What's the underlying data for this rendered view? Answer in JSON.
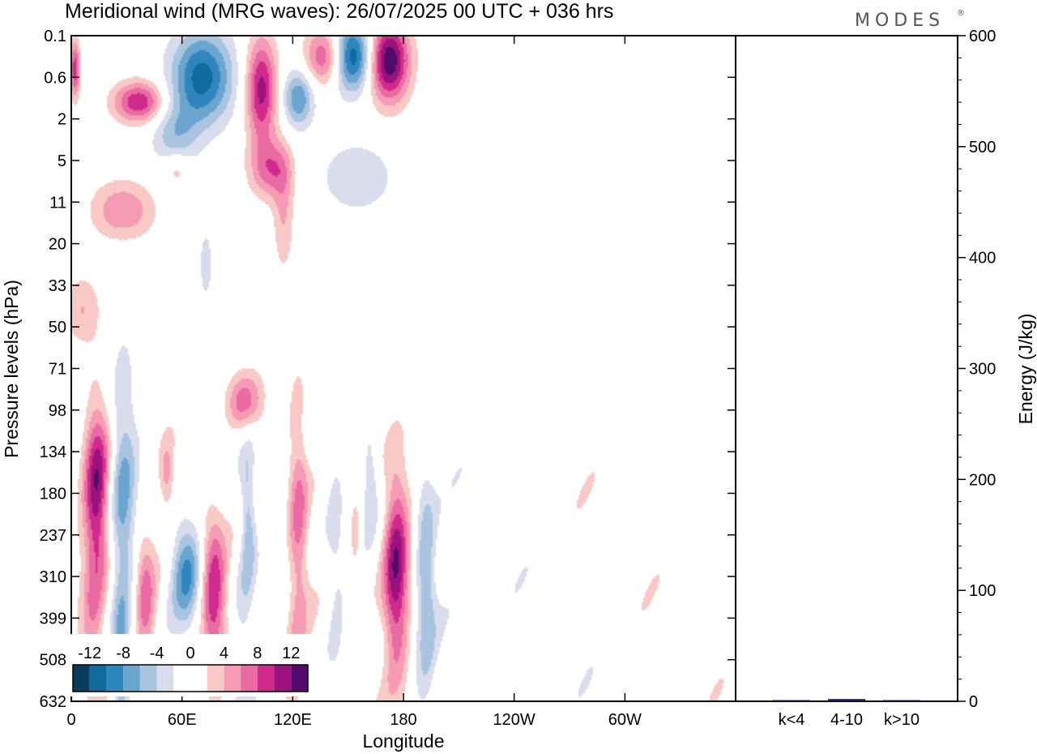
{
  "header": {
    "title": "Meridional wind (MRG waves):  26/07/2025  00 UTC  + 036 hrs",
    "brand": "MODES",
    "brand_mark": "®"
  },
  "colors": {
    "negative": [
      "#0b3c5d",
      "#0f6a9d",
      "#2f86bf",
      "#6aa5cf",
      "#a9c4df",
      "#d8dcec"
    ],
    "zero": "#ffffff",
    "positive": [
      "#f9c9c5",
      "#f59bb3",
      "#ea6aa2",
      "#cf2a8c",
      "#9c127c",
      "#4f0a6a"
    ],
    "bar": "#151a4f"
  },
  "chart_data": [
    {
      "type": "heatmap",
      "title": "Meridional wind (MRG waves)",
      "xlabel": "Longitude",
      "ylabel": "Pressure levels (hPa)",
      "x_ticks": [
        "0",
        "60E",
        "120E",
        "180",
        "120W",
        "60W"
      ],
      "y_ticks": [
        "0.1",
        "0.6",
        "2",
        "5",
        "11",
        "20",
        "33",
        "50",
        "71",
        "98",
        "134",
        "180",
        "237",
        "310",
        "399",
        "508",
        "632"
      ],
      "colorbar": {
        "levels": [
          -12,
          -8,
          -4,
          0,
          4,
          8,
          12
        ],
        "tick_labels": [
          "-12",
          "-8",
          "-4",
          "0",
          "4",
          "8",
          "12"
        ]
      },
      "features": [
        {
          "lon": 2,
          "level_index": 0.8,
          "value": 9,
          "sx": 2,
          "sy": 0.5
        },
        {
          "lon": 37,
          "level_index": 1.6,
          "value": 10,
          "sx": 10,
          "sy": 0.35
        },
        {
          "lon": 71,
          "level_index": 1.0,
          "value": -11,
          "sx": 12,
          "sy": 0.8
        },
        {
          "lon": 56,
          "level_index": 2.4,
          "value": -5,
          "sx": 9,
          "sy": 0.6
        },
        {
          "lon": 103,
          "level_index": 1.3,
          "value": 11,
          "sx": 6,
          "sy": 0.9
        },
        {
          "lon": 123,
          "level_index": 1.5,
          "value": -8,
          "sx": 6,
          "sy": 0.5
        },
        {
          "lon": 138,
          "level_index": 0.5,
          "value": 9,
          "sx": 8,
          "sy": 0.5
        },
        {
          "lon": 152,
          "level_index": 0.5,
          "value": -13,
          "sx": 8,
          "sy": 0.6
        },
        {
          "lon": 172,
          "level_index": 0.6,
          "value": 14,
          "sx": 8,
          "sy": 0.7
        },
        {
          "lon": 108,
          "level_index": 3.2,
          "value": 7,
          "sx": 8,
          "sy": 0.5
        },
        {
          "lon": 28,
          "level_index": 4.2,
          "value": 6,
          "sx": 12,
          "sy": 0.5
        },
        {
          "lon": 57,
          "level_index": 3.2,
          "value": 4,
          "sx": 5,
          "sy": 0.3
        },
        {
          "lon": 115,
          "level_index": 4.3,
          "value": 4,
          "sx": 4,
          "sy": 1.0
        },
        {
          "lon": 155,
          "level_index": 3.4,
          "value": -4,
          "sx": 14,
          "sy": 0.6
        },
        {
          "lon": 6,
          "level_index": 6.6,
          "value": 4,
          "sx": 7,
          "sy": 0.6
        },
        {
          "lon": 73,
          "level_index": 5.5,
          "value": -3,
          "sx": 3,
          "sy": 0.7
        },
        {
          "lon": 14,
          "level_index": 11.0,
          "value": 11,
          "sx": 5,
          "sy": 1.5
        },
        {
          "lon": 28,
          "level_index": 11.2,
          "value": -6,
          "sx": 5,
          "sy": 2.5
        },
        {
          "lon": 27,
          "level_index": 15.3,
          "value": -6,
          "sx": 3,
          "sy": 1.0
        },
        {
          "lon": 40,
          "level_index": 13.5,
          "value": 7,
          "sx": 4,
          "sy": 1.0
        },
        {
          "lon": 52,
          "level_index": 10.6,
          "value": 5,
          "sx": 3,
          "sy": 0.6
        },
        {
          "lon": 62,
          "level_index": 12.8,
          "value": -8,
          "sx": 6,
          "sy": 0.9
        },
        {
          "lon": 77,
          "level_index": 13.3,
          "value": 10,
          "sx": 5,
          "sy": 1.3
        },
        {
          "lon": 94,
          "level_index": 8.8,
          "value": 7,
          "sx": 7,
          "sy": 0.5
        },
        {
          "lon": 96,
          "level_index": 11.5,
          "value": -6,
          "sx": 3,
          "sy": 1.2
        },
        {
          "lon": 93,
          "level_index": 14.5,
          "value": -3,
          "sx": 4,
          "sy": 1.5
        },
        {
          "lon": 123,
          "level_index": 11.6,
          "value": 7,
          "sx": 4,
          "sy": 2.0
        },
        {
          "lon": 143,
          "level_index": 11.8,
          "value": -3,
          "sx": 4,
          "sy": 2.5
        },
        {
          "lon": 154,
          "level_index": 12.1,
          "value": 4,
          "sx": 2,
          "sy": 0.6
        },
        {
          "lon": 162,
          "level_index": 10.7,
          "value": -4,
          "sx": 3,
          "sy": 0.8
        },
        {
          "lon": 176,
          "level_index": 12.8,
          "value": 11,
          "sx": 5,
          "sy": 1.8
        },
        {
          "lon": 192,
          "level_index": 13.0,
          "value": -6,
          "sx": 4,
          "sy": 2.0
        },
        {
          "lon": 12,
          "level_index": 14.6,
          "value": 5,
          "sx": 5,
          "sy": 1.5
        },
        {
          "lon": 120,
          "level_index": 15.6,
          "value": 3,
          "sx": 4,
          "sy": 1.0
        }
      ]
    },
    {
      "type": "bar",
      "categories": [
        "k<4",
        "4-10",
        "k>10"
      ],
      "values": [
        0.6,
        2.0,
        0.2
      ],
      "ylabel": "Energy (J/kg)",
      "ylim": [
        0,
        600
      ],
      "y_ticks": [
        "0",
        "100",
        "200",
        "300",
        "400",
        "500",
        "600"
      ]
    }
  ]
}
